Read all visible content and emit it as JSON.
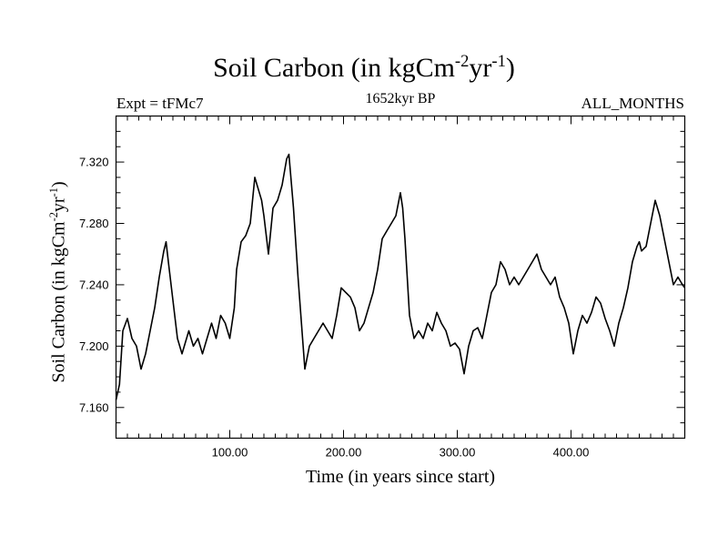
{
  "chart_data": {
    "type": "line",
    "title": "Soil Carbon (in kgCm",
    "title_units": {
      "exp1": "-2",
      "mid": "yr",
      "exp2": "-1",
      "close": ")"
    },
    "subtitle_left": "Expt = tFMc7",
    "subtitle_center": "1652kyr BP",
    "subtitle_right": "ALL_MONTHS",
    "xlabel": "Time (in years since start)",
    "ylabel": "Soil Carbon (in kgCm",
    "ylabel_units": {
      "exp1": "-2",
      "mid": "yr",
      "exp2": "-1",
      "close": ")"
    },
    "xlim": [
      0,
      500
    ],
    "ylim": [
      7.14,
      7.35
    ],
    "x_major_ticks": [
      100,
      200,
      300,
      400
    ],
    "x_tick_labels": [
      "100.00",
      "200.00",
      "300.00",
      "400.00"
    ],
    "y_major_ticks": [
      7.16,
      7.2,
      7.24,
      7.28,
      7.32
    ],
    "y_tick_labels": [
      "7.160",
      "7.200",
      "7.240",
      "7.280",
      "7.320"
    ],
    "series": [
      {
        "name": "Soil Carbon",
        "x": [
          0,
          3,
          6,
          10,
          14,
          18,
          22,
          26,
          30,
          34,
          38,
          42,
          44,
          46,
          50,
          54,
          58,
          60,
          64,
          68,
          72,
          76,
          80,
          84,
          88,
          92,
          96,
          100,
          104,
          106,
          110,
          114,
          118,
          122,
          126,
          128,
          130,
          134,
          138,
          142,
          146,
          150,
          152,
          156,
          160,
          164,
          166,
          170,
          174,
          178,
          182,
          186,
          190,
          194,
          198,
          202,
          206,
          210,
          214,
          218,
          222,
          226,
          230,
          234,
          238,
          242,
          246,
          250,
          252,
          254,
          258,
          262,
          266,
          270,
          274,
          278,
          282,
          286,
          290,
          294,
          298,
          302,
          306,
          310,
          314,
          318,
          322,
          326,
          330,
          334,
          338,
          342,
          346,
          350,
          354,
          358,
          362,
          366,
          370,
          374,
          378,
          382,
          386,
          390,
          394,
          398,
          402,
          406,
          410,
          414,
          418,
          422,
          426,
          430,
          434,
          438,
          442,
          446,
          450,
          454,
          458,
          460,
          462,
          466,
          470,
          474,
          478,
          482,
          486,
          490,
          494,
          498,
          500
        ],
        "values": [
          7.165,
          7.175,
          7.21,
          7.218,
          7.205,
          7.2,
          7.185,
          7.195,
          7.21,
          7.225,
          7.245,
          7.262,
          7.268,
          7.255,
          7.23,
          7.205,
          7.195,
          7.2,
          7.21,
          7.2,
          7.205,
          7.195,
          7.205,
          7.215,
          7.205,
          7.22,
          7.215,
          7.205,
          7.225,
          7.25,
          7.268,
          7.272,
          7.28,
          7.31,
          7.3,
          7.295,
          7.285,
          7.26,
          7.29,
          7.295,
          7.305,
          7.322,
          7.325,
          7.29,
          7.245,
          7.205,
          7.185,
          7.2,
          7.205,
          7.21,
          7.215,
          7.21,
          7.205,
          7.22,
          7.238,
          7.235,
          7.232,
          7.225,
          7.21,
          7.215,
          7.225,
          7.235,
          7.25,
          7.27,
          7.275,
          7.28,
          7.285,
          7.3,
          7.29,
          7.27,
          7.22,
          7.205,
          7.21,
          7.205,
          7.215,
          7.21,
          7.222,
          7.215,
          7.21,
          7.2,
          7.202,
          7.198,
          7.182,
          7.2,
          7.21,
          7.212,
          7.205,
          7.22,
          7.235,
          7.24,
          7.255,
          7.25,
          7.24,
          7.245,
          7.24,
          7.245,
          7.25,
          7.255,
          7.26,
          7.25,
          7.245,
          7.24,
          7.245,
          7.232,
          7.225,
          7.215,
          7.195,
          7.21,
          7.22,
          7.215,
          7.222,
          7.232,
          7.228,
          7.218,
          7.21,
          7.2,
          7.215,
          7.225,
          7.238,
          7.255,
          7.265,
          7.268,
          7.262,
          7.265,
          7.28,
          7.295,
          7.285,
          7.27,
          7.255,
          7.24,
          7.245,
          7.24,
          7.238
        ]
      }
    ]
  }
}
